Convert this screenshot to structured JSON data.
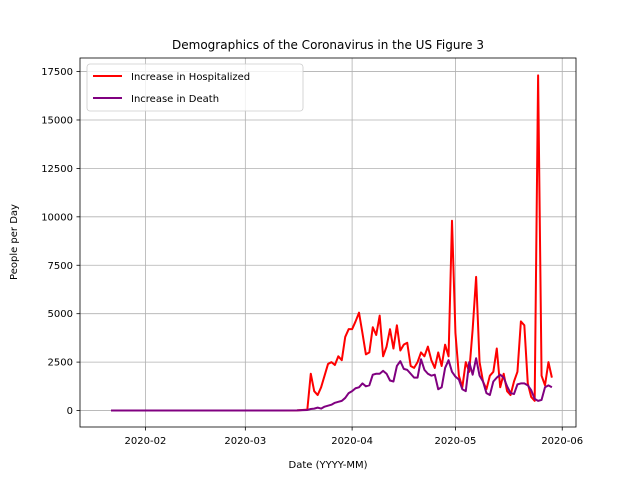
{
  "chart_data": {
    "type": "line",
    "title": "Demographics of the Coronavirus in the US Figure 3",
    "xlabel": "Date (YYYY-MM)",
    "ylabel": "People per Day",
    "x_tick_labels": [
      "2020-02",
      "2020-03",
      "2020-04",
      "2020-05",
      "2020-06"
    ],
    "x_tick_dates": [
      "2020-02-01",
      "2020-03-01",
      "2020-04-01",
      "2020-05-01",
      "2020-06-01"
    ],
    "y_ticks": [
      0,
      2500,
      5000,
      7500,
      10000,
      12500,
      15000,
      17500
    ],
    "y_tick_labels": [
      "0",
      "2500",
      "5000",
      "7500",
      "10000",
      "12500",
      "15000",
      "17500"
    ],
    "xlim": [
      "2020-01-13",
      "2020-06-05"
    ],
    "ylim": [
      -850,
      18200
    ],
    "grid": true,
    "legend_position": "upper-left",
    "series": [
      {
        "name": "Increase in Hospitalized",
        "color": "#ff0000",
        "points": [
          [
            "2020-01-22",
            0
          ],
          [
            "2020-01-25",
            0
          ],
          [
            "2020-02-01",
            0
          ],
          [
            "2020-02-10",
            0
          ],
          [
            "2020-02-20",
            0
          ],
          [
            "2020-03-01",
            0
          ],
          [
            "2020-03-10",
            0
          ],
          [
            "2020-03-16",
            10
          ],
          [
            "2020-03-19",
            50
          ],
          [
            "2020-03-20",
            1900
          ],
          [
            "2020-03-21",
            1000
          ],
          [
            "2020-03-22",
            800
          ],
          [
            "2020-03-23",
            1200
          ],
          [
            "2020-03-24",
            1800
          ],
          [
            "2020-03-25",
            2400
          ],
          [
            "2020-03-26",
            2500
          ],
          [
            "2020-03-27",
            2350
          ],
          [
            "2020-03-28",
            2800
          ],
          [
            "2020-03-29",
            2600
          ],
          [
            "2020-03-30",
            3800
          ],
          [
            "2020-03-31",
            4200
          ],
          [
            "2020-04-01",
            4200
          ],
          [
            "2020-04-02",
            4600
          ],
          [
            "2020-04-03",
            5050
          ],
          [
            "2020-04-04",
            4000
          ],
          [
            "2020-04-05",
            2900
          ],
          [
            "2020-04-06",
            3000
          ],
          [
            "2020-04-07",
            4300
          ],
          [
            "2020-04-08",
            3900
          ],
          [
            "2020-04-09",
            4900
          ],
          [
            "2020-04-10",
            2800
          ],
          [
            "2020-04-11",
            3300
          ],
          [
            "2020-04-12",
            4200
          ],
          [
            "2020-04-13",
            3200
          ],
          [
            "2020-04-14",
            4400
          ],
          [
            "2020-04-15",
            3100
          ],
          [
            "2020-04-16",
            3400
          ],
          [
            "2020-04-17",
            3500
          ],
          [
            "2020-04-18",
            2300
          ],
          [
            "2020-04-19",
            2200
          ],
          [
            "2020-04-20",
            2500
          ],
          [
            "2020-04-21",
            3000
          ],
          [
            "2020-04-22",
            2800
          ],
          [
            "2020-04-23",
            3300
          ],
          [
            "2020-04-24",
            2600
          ],
          [
            "2020-04-25",
            2200
          ],
          [
            "2020-04-26",
            3000
          ],
          [
            "2020-04-27",
            2300
          ],
          [
            "2020-04-28",
            3400
          ],
          [
            "2020-04-29",
            2800
          ],
          [
            "2020-04-30",
            9800
          ],
          [
            "2020-05-01",
            4000
          ],
          [
            "2020-05-02",
            1800
          ],
          [
            "2020-05-03",
            1200
          ],
          [
            "2020-05-04",
            2500
          ],
          [
            "2020-05-05",
            2000
          ],
          [
            "2020-05-06",
            4200
          ],
          [
            "2020-05-07",
            6900
          ],
          [
            "2020-05-08",
            2500
          ],
          [
            "2020-05-09",
            1500
          ],
          [
            "2020-05-10",
            1100
          ],
          [
            "2020-05-11",
            1800
          ],
          [
            "2020-05-12",
            2000
          ],
          [
            "2020-05-13",
            3200
          ],
          [
            "2020-05-14",
            1200
          ],
          [
            "2020-05-15",
            1900
          ],
          [
            "2020-05-16",
            1000
          ],
          [
            "2020-05-17",
            800
          ],
          [
            "2020-05-18",
            1500
          ],
          [
            "2020-05-19",
            2000
          ],
          [
            "2020-05-20",
            4600
          ],
          [
            "2020-05-21",
            4400
          ],
          [
            "2020-05-22",
            1400
          ],
          [
            "2020-05-23",
            700
          ],
          [
            "2020-05-24",
            500
          ],
          [
            "2020-05-25",
            17300
          ],
          [
            "2020-05-26",
            1800
          ],
          [
            "2020-05-27",
            1300
          ],
          [
            "2020-05-28",
            2500
          ],
          [
            "2020-05-29",
            1700
          ]
        ]
      },
      {
        "name": "Increase in Death",
        "color": "#800080",
        "points": [
          [
            "2020-01-22",
            0
          ],
          [
            "2020-01-25",
            0
          ],
          [
            "2020-02-01",
            0
          ],
          [
            "2020-02-10",
            0
          ],
          [
            "2020-02-20",
            0
          ],
          [
            "2020-03-01",
            0
          ],
          [
            "2020-03-10",
            0
          ],
          [
            "2020-03-16",
            10
          ],
          [
            "2020-03-19",
            30
          ],
          [
            "2020-03-20",
            80
          ],
          [
            "2020-03-21",
            100
          ],
          [
            "2020-03-22",
            150
          ],
          [
            "2020-03-23",
            100
          ],
          [
            "2020-03-24",
            200
          ],
          [
            "2020-03-25",
            250
          ],
          [
            "2020-03-26",
            300
          ],
          [
            "2020-03-27",
            400
          ],
          [
            "2020-03-28",
            450
          ],
          [
            "2020-03-29",
            500
          ],
          [
            "2020-03-30",
            650
          ],
          [
            "2020-03-31",
            900
          ],
          [
            "2020-04-01",
            1000
          ],
          [
            "2020-04-02",
            1150
          ],
          [
            "2020-04-03",
            1200
          ],
          [
            "2020-04-04",
            1400
          ],
          [
            "2020-04-05",
            1250
          ],
          [
            "2020-04-06",
            1300
          ],
          [
            "2020-04-07",
            1850
          ],
          [
            "2020-04-08",
            1900
          ],
          [
            "2020-04-09",
            1900
          ],
          [
            "2020-04-10",
            2050
          ],
          [
            "2020-04-11",
            1900
          ],
          [
            "2020-04-12",
            1550
          ],
          [
            "2020-04-13",
            1500
          ],
          [
            "2020-04-14",
            2300
          ],
          [
            "2020-04-15",
            2550
          ],
          [
            "2020-04-16",
            2150
          ],
          [
            "2020-04-17",
            2100
          ],
          [
            "2020-04-18",
            1900
          ],
          [
            "2020-04-19",
            1700
          ],
          [
            "2020-04-20",
            1700
          ],
          [
            "2020-04-21",
            2650
          ],
          [
            "2020-04-22",
            2100
          ],
          [
            "2020-04-23",
            1900
          ],
          [
            "2020-04-24",
            1800
          ],
          [
            "2020-04-25",
            1850
          ],
          [
            "2020-04-26",
            1100
          ],
          [
            "2020-04-27",
            1200
          ],
          [
            "2020-04-28",
            2200
          ],
          [
            "2020-04-29",
            2600
          ],
          [
            "2020-04-30",
            2000
          ],
          [
            "2020-05-01",
            1750
          ],
          [
            "2020-05-02",
            1600
          ],
          [
            "2020-05-03",
            1100
          ],
          [
            "2020-05-04",
            1000
          ],
          [
            "2020-05-05",
            2500
          ],
          [
            "2020-05-06",
            1850
          ],
          [
            "2020-05-07",
            2700
          ],
          [
            "2020-05-08",
            1800
          ],
          [
            "2020-05-09",
            1500
          ],
          [
            "2020-05-10",
            900
          ],
          [
            "2020-05-11",
            800
          ],
          [
            "2020-05-12",
            1500
          ],
          [
            "2020-05-13",
            1700
          ],
          [
            "2020-05-14",
            1850
          ],
          [
            "2020-05-15",
            1700
          ],
          [
            "2020-05-16",
            1250
          ],
          [
            "2020-05-17",
            900
          ],
          [
            "2020-05-18",
            850
          ],
          [
            "2020-05-19",
            1350
          ],
          [
            "2020-05-20",
            1400
          ],
          [
            "2020-05-21",
            1400
          ],
          [
            "2020-05-22",
            1300
          ],
          [
            "2020-05-23",
            1050
          ],
          [
            "2020-05-24",
            600
          ],
          [
            "2020-05-25",
            500
          ],
          [
            "2020-05-26",
            550
          ],
          [
            "2020-05-27",
            1200
          ],
          [
            "2020-05-28",
            1300
          ],
          [
            "2020-05-29",
            1200
          ]
        ]
      }
    ]
  }
}
